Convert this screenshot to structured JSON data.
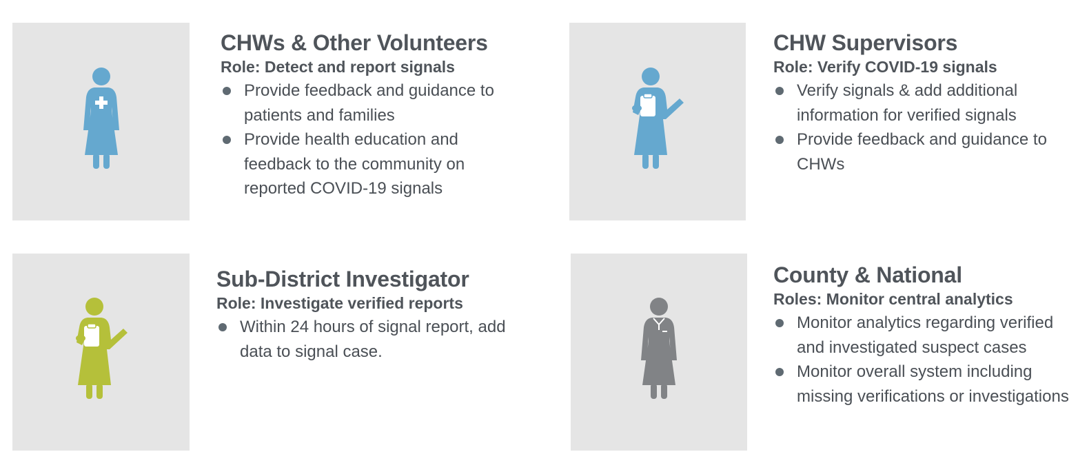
{
  "colors": {
    "tile_background": "#e5e5e5",
    "figure_blue": "#65a8cf",
    "figure_green": "#b5c03a",
    "figure_gray": "#818386",
    "text": "#4f545a",
    "bullet": "#5f6a72"
  },
  "cards": [
    {
      "icon": "female-health-worker-cross-icon",
      "title": "CHWs & Other Volunteers",
      "role": "Role: Detect and report signals",
      "bullets": [
        "Provide feedback and guidance to patients and families",
        "Provide health education and feedback to the community on reported COVID-19 signals"
      ]
    },
    {
      "icon": "supervisor-clipboard-icon",
      "title": "CHW Supervisors",
      "role": "Role: Verify COVID-19 signals",
      "bullets": [
        "Verify signals & add additional information for verified signals",
        "Provide feedback and guidance to CHWs"
      ]
    },
    {
      "icon": "investigator-clipboard-icon",
      "title": "Sub-District Investigator",
      "role": "Role: Investigate verified reports",
      "bullets": [
        "Within 24 hours of signal report, add data to signal case."
      ]
    },
    {
      "icon": "official-person-icon",
      "title": "County & National",
      "role": "Roles: Monitor central analytics",
      "bullets": [
        "Monitor analytics regarding verified and investigated suspect cases",
        "Monitor overall system including missing verifications or investigations"
      ]
    }
  ]
}
